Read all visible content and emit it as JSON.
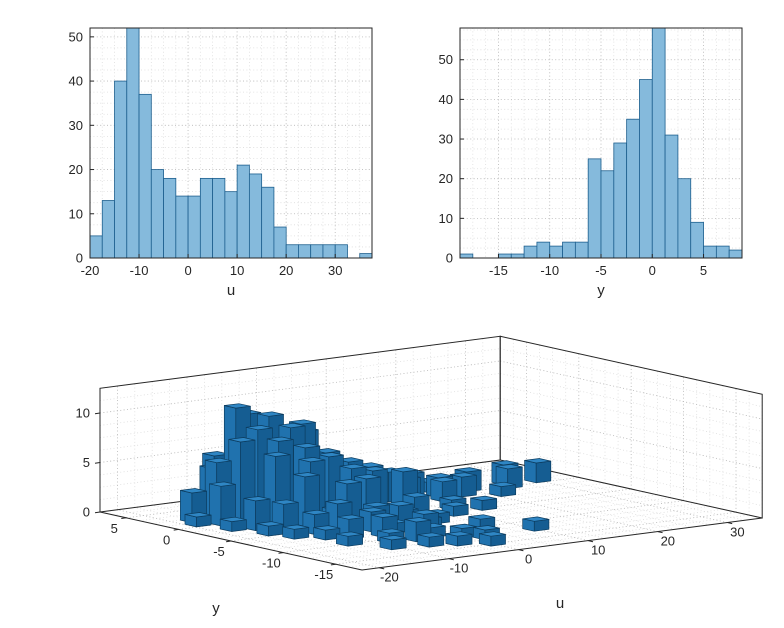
{
  "figure": {
    "background": "#ffffff"
  },
  "colors": {
    "axis": "#262626",
    "tick_label": "#262626",
    "grid_major": "#bdbdbd",
    "grid_minor": "#dddddd",
    "bar_face": "#85badc",
    "bar_edge": "#1d5f8e",
    "bar3_top": "#2f86c4",
    "bar3_left": "#2072ae",
    "bar3_front": "#155d92",
    "bar3_edge": "#0c3c5f"
  },
  "chart_data": [
    {
      "type": "bar",
      "subtype": "histogram",
      "id": "hist-u",
      "title": "",
      "xlabel": "u",
      "ylabel": "",
      "xlim": [
        -20,
        37.5
      ],
      "ylim": [
        0,
        52
      ],
      "xticks": [
        -20,
        -10,
        0,
        10,
        20,
        30
      ],
      "yticks": [
        0,
        10,
        20,
        30,
        40,
        50
      ],
      "minor_x": 2.5,
      "minor_y": 2.5,
      "bin_start": -20,
      "bin_width": 2.5,
      "values": [
        5,
        13,
        40,
        55,
        37,
        20,
        18,
        14,
        14,
        18,
        18,
        15,
        21,
        19,
        16,
        7,
        3,
        3,
        3,
        3,
        3,
        0,
        1
      ],
      "note": "tallest bin (-12.5 to -10) is clipped by the axis top",
      "grid": true,
      "legend": null
    },
    {
      "type": "bar",
      "subtype": "histogram",
      "id": "hist-y",
      "title": "",
      "xlabel": "y",
      "ylabel": "",
      "xlim": [
        -18.75,
        8.75
      ],
      "ylim": [
        0,
        58
      ],
      "xticks": [
        -15,
        -10,
        -5,
        0,
        5
      ],
      "yticks": [
        0,
        10,
        20,
        30,
        40,
        50
      ],
      "minor_x": 1.25,
      "minor_y": 2.5,
      "bin_start": -18.75,
      "bin_width": 1.25,
      "values": [
        1,
        0,
        0,
        1,
        1,
        3,
        4,
        3,
        4,
        4,
        25,
        22,
        29,
        35,
        45,
        62,
        31,
        20,
        9,
        3,
        3,
        2
      ],
      "note": "tallest bin (0 to 1.25) is clipped by the axis top",
      "grid": true,
      "legend": null
    },
    {
      "type": "bar3d",
      "subtype": "hist3",
      "id": "hist3-uy",
      "title": "",
      "xlabel": "u",
      "ylabel": "y",
      "zlabel": "",
      "u_lim": [
        -22.5,
        35
      ],
      "y_lim": [
        -17.5,
        7.5
      ],
      "z_lim": [
        0,
        12.5
      ],
      "u_ticks": [
        -20,
        -10,
        0,
        10,
        20,
        30
      ],
      "y_ticks": [
        5,
        0,
        -5,
        -10,
        -15
      ],
      "z_ticks": [
        0,
        5,
        10
      ],
      "u_minor": 2.5,
      "y_minor": 1.25,
      "z_minor": 1.25,
      "grid": true,
      "bars": [
        [
          -11.2,
          1.9,
          11
        ],
        [
          -8.8,
          2.5,
          10
        ],
        [
          -7.5,
          1.2,
          10
        ],
        [
          -10,
          0.6,
          9
        ],
        [
          -6.2,
          0,
          9
        ],
        [
          -3.8,
          0.6,
          9
        ],
        [
          -12.5,
          0.6,
          8
        ],
        [
          -8.8,
          -0.6,
          8
        ],
        [
          -5,
          1.9,
          8
        ],
        [
          -2.5,
          1.2,
          8
        ],
        [
          -11.2,
          -1.9,
          7
        ],
        [
          -5,
          -0.6,
          7
        ],
        [
          -15,
          1.2,
          6
        ],
        [
          -12.5,
          3.1,
          6
        ],
        [
          -6.2,
          -1.9,
          6
        ],
        [
          -2.5,
          -1.2,
          6
        ],
        [
          -1.2,
          0,
          6
        ],
        [
          -13.8,
          2.5,
          5
        ],
        [
          -10,
          3.8,
          5
        ],
        [
          -8.8,
          -3.1,
          5
        ],
        [
          -1.2,
          -2.5,
          5
        ],
        [
          0,
          1.2,
          5
        ],
        [
          1.2,
          -0.6,
          5
        ],
        [
          -16.2,
          0,
          4
        ],
        [
          -6.2,
          3.1,
          4
        ],
        [
          -3.8,
          -3.8,
          4
        ],
        [
          0,
          -3.1,
          4
        ],
        [
          2.5,
          0.6,
          4
        ],
        [
          3.8,
          -1.2,
          4
        ],
        [
          5,
          0,
          4
        ],
        [
          6.2,
          -2.5,
          4
        ],
        [
          -17.5,
          1.9,
          3
        ],
        [
          -15,
          -2.5,
          3
        ],
        [
          -13.8,
          -4.4,
          3
        ],
        [
          -8.8,
          -6.2,
          3
        ],
        [
          0.6,
          3.1,
          3
        ],
        [
          7.5,
          -1.9,
          3
        ],
        [
          8.8,
          0.6,
          3
        ],
        [
          10,
          -0.6,
          3
        ],
        [
          -18.8,
          0.6,
          1
        ],
        [
          -17.5,
          -1.9,
          1
        ],
        [
          -16,
          -4.4,
          1
        ],
        [
          -15,
          -6.2,
          1
        ],
        [
          -13,
          -10,
          1
        ],
        [
          -12.5,
          -7.5,
          1
        ],
        [
          -11.2,
          -5.6,
          2
        ],
        [
          -10.5,
          -12.5,
          1
        ],
        [
          -10,
          -8.1,
          2
        ],
        [
          -8,
          -10.6,
          1
        ],
        [
          -7.5,
          -5,
          2
        ],
        [
          -6.2,
          -8.8,
          2
        ],
        [
          -6,
          -13.1,
          1
        ],
        [
          -5,
          -6.9,
          2
        ],
        [
          -5,
          -11.2,
          2
        ],
        [
          -3.8,
          -8.1,
          1
        ],
        [
          -3,
          -13.8,
          1
        ],
        [
          -2.5,
          -5.6,
          2
        ],
        [
          -2.5,
          4.4,
          2
        ],
        [
          -2,
          -10.6,
          1
        ],
        [
          -1.2,
          -9.4,
          2
        ],
        [
          0,
          -6.2,
          2
        ],
        [
          0,
          -15,
          1
        ],
        [
          0.5,
          -11.9,
          1
        ],
        [
          1.2,
          -8.1,
          1
        ],
        [
          2,
          -13.1,
          1
        ],
        [
          2.5,
          -5,
          1
        ],
        [
          3.8,
          3.8,
          2
        ],
        [
          4,
          -7,
          1
        ],
        [
          5,
          -4.4,
          2
        ],
        [
          6,
          -10,
          1
        ],
        [
          6.2,
          2.5,
          2
        ],
        [
          8.8,
          -5.6,
          1
        ],
        [
          8.8,
          3.1,
          1
        ],
        [
          10,
          -12.5,
          1
        ],
        [
          11.2,
          -3.8,
          1
        ],
        [
          12.5,
          1.2,
          2
        ],
        [
          13.8,
          -1.2,
          2
        ],
        [
          13.8,
          -5,
          1
        ],
        [
          15,
          0,
          2
        ],
        [
          16.2,
          1.9,
          1
        ],
        [
          17.5,
          -0.6,
          2
        ],
        [
          20,
          0.6,
          2
        ],
        [
          21.2,
          -1.9,
          1
        ],
        [
          25,
          0,
          2
        ],
        [
          26.2,
          1.2,
          2
        ],
        [
          30,
          0.6,
          2
        ]
      ]
    }
  ]
}
